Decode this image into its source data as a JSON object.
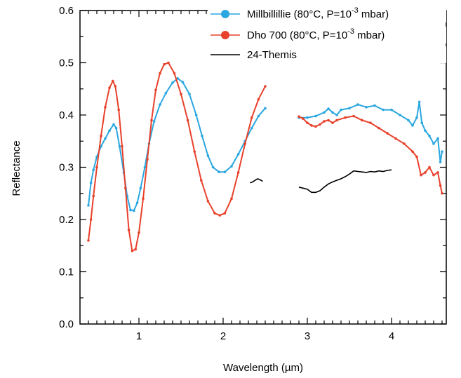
{
  "chart_data": {
    "type": "line",
    "xlabel": "Wavelength (µm)",
    "ylabel": "Reflectance",
    "xlim": [
      0.3,
      4.65
    ],
    "ylim": [
      0,
      0.6
    ],
    "xticks": [
      1,
      2,
      3,
      4
    ],
    "yticks": [
      0.0,
      0.1,
      0.2,
      0.3,
      0.4,
      0.5,
      0.6
    ],
    "ytick_labels": [
      "0.0",
      "0.1",
      "0.2",
      "0.3",
      "0.4",
      "0.5",
      "0.6"
    ],
    "grid": false,
    "legend_position": "top-right",
    "series": [
      {
        "name": "Millbillillie (80°C, P=10",
        "name_superscript": "-3",
        "name_suffix": " mbar)",
        "color": "#2aa7e0",
        "marker": "circle",
        "segments": [
          [
            [
              0.4,
              0.227
            ],
            [
              0.43,
              0.27
            ],
            [
              0.46,
              0.295
            ],
            [
              0.5,
              0.32
            ],
            [
              0.55,
              0.34
            ],
            [
              0.6,
              0.355
            ],
            [
              0.65,
              0.37
            ],
            [
              0.7,
              0.382
            ],
            [
              0.73,
              0.375
            ],
            [
              0.77,
              0.34
            ],
            [
              0.82,
              0.29
            ],
            [
              0.86,
              0.245
            ],
            [
              0.9,
              0.218
            ],
            [
              0.94,
              0.217
            ],
            [
              0.98,
              0.232
            ],
            [
              1.02,
              0.26
            ],
            [
              1.07,
              0.3
            ],
            [
              1.12,
              0.345
            ],
            [
              1.18,
              0.388
            ],
            [
              1.25,
              0.42
            ],
            [
              1.32,
              0.442
            ],
            [
              1.4,
              0.462
            ],
            [
              1.46,
              0.47
            ],
            [
              1.52,
              0.463
            ],
            [
              1.6,
              0.44
            ],
            [
              1.68,
              0.4
            ],
            [
              1.75,
              0.36
            ],
            [
              1.82,
              0.322
            ],
            [
              1.88,
              0.3
            ],
            [
              1.95,
              0.291
            ],
            [
              2.02,
              0.291
            ],
            [
              2.1,
              0.302
            ],
            [
              2.18,
              0.325
            ],
            [
              2.26,
              0.35
            ],
            [
              2.34,
              0.375
            ],
            [
              2.42,
              0.398
            ],
            [
              2.5,
              0.413
            ]
          ],
          [
            [
              2.9,
              0.395
            ],
            [
              3.0,
              0.395
            ],
            [
              3.1,
              0.398
            ],
            [
              3.2,
              0.405
            ],
            [
              3.25,
              0.412
            ],
            [
              3.3,
              0.405
            ],
            [
              3.35,
              0.4
            ],
            [
              3.4,
              0.41
            ],
            [
              3.5,
              0.413
            ],
            [
              3.6,
              0.42
            ],
            [
              3.7,
              0.415
            ],
            [
              3.8,
              0.418
            ],
            [
              3.9,
              0.41
            ],
            [
              4.0,
              0.41
            ],
            [
              4.1,
              0.4
            ],
            [
              4.2,
              0.39
            ],
            [
              4.25,
              0.38
            ],
            [
              4.3,
              0.395
            ],
            [
              4.33,
              0.425
            ],
            [
              4.36,
              0.385
            ],
            [
              4.4,
              0.37
            ],
            [
              4.45,
              0.36
            ],
            [
              4.5,
              0.345
            ],
            [
              4.55,
              0.355
            ],
            [
              4.58,
              0.31
            ],
            [
              4.6,
              0.33
            ]
          ]
        ]
      },
      {
        "name": "Dho 700  (80°C, P=10",
        "name_superscript": "-3",
        "name_suffix": " mbar)",
        "color": "#e8412c",
        "marker": "circle",
        "segments": [
          [
            [
              0.4,
              0.16
            ],
            [
              0.43,
              0.2
            ],
            [
              0.46,
              0.245
            ],
            [
              0.5,
              0.3
            ],
            [
              0.55,
              0.36
            ],
            [
              0.6,
              0.415
            ],
            [
              0.65,
              0.452
            ],
            [
              0.69,
              0.465
            ],
            [
              0.72,
              0.455
            ],
            [
              0.76,
              0.41
            ],
            [
              0.8,
              0.34
            ],
            [
              0.84,
              0.26
            ],
            [
              0.88,
              0.18
            ],
            [
              0.92,
              0.14
            ],
            [
              0.96,
              0.143
            ],
            [
              1.0,
              0.175
            ],
            [
              1.05,
              0.24
            ],
            [
              1.1,
              0.315
            ],
            [
              1.15,
              0.39
            ],
            [
              1.2,
              0.448
            ],
            [
              1.25,
              0.48
            ],
            [
              1.3,
              0.497
            ],
            [
              1.35,
              0.5
            ],
            [
              1.42,
              0.48
            ],
            [
              1.5,
              0.44
            ],
            [
              1.58,
              0.39
            ],
            [
              1.66,
              0.33
            ],
            [
              1.74,
              0.275
            ],
            [
              1.82,
              0.235
            ],
            [
              1.9,
              0.212
            ],
            [
              1.96,
              0.208
            ],
            [
              2.02,
              0.212
            ],
            [
              2.1,
              0.24
            ],
            [
              2.18,
              0.29
            ],
            [
              2.26,
              0.345
            ],
            [
              2.34,
              0.395
            ],
            [
              2.42,
              0.43
            ],
            [
              2.5,
              0.455
            ]
          ],
          [
            [
              2.9,
              0.397
            ],
            [
              2.95,
              0.393
            ],
            [
              3.0,
              0.385
            ],
            [
              3.05,
              0.38
            ],
            [
              3.1,
              0.378
            ],
            [
              3.15,
              0.382
            ],
            [
              3.2,
              0.388
            ],
            [
              3.25,
              0.39
            ],
            [
              3.3,
              0.385
            ],
            [
              3.35,
              0.39
            ],
            [
              3.45,
              0.395
            ],
            [
              3.55,
              0.398
            ],
            [
              3.65,
              0.39
            ],
            [
              3.75,
              0.385
            ],
            [
              3.85,
              0.375
            ],
            [
              3.95,
              0.365
            ],
            [
              4.05,
              0.355
            ],
            [
              4.15,
              0.345
            ],
            [
              4.25,
              0.33
            ],
            [
              4.3,
              0.32
            ],
            [
              4.35,
              0.285
            ],
            [
              4.4,
              0.29
            ],
            [
              4.45,
              0.3
            ],
            [
              4.5,
              0.285
            ],
            [
              4.55,
              0.29
            ],
            [
              4.58,
              0.265
            ],
            [
              4.6,
              0.25
            ]
          ]
        ]
      },
      {
        "name": "24-Themis",
        "color": "#000000",
        "marker": "none",
        "segments": [
          [
            [
              2.32,
              0.27
            ],
            [
              2.35,
              0.272
            ],
            [
              2.38,
              0.275
            ],
            [
              2.41,
              0.278
            ],
            [
              2.44,
              0.276
            ],
            [
              2.47,
              0.273
            ]
          ],
          [
            [
              2.9,
              0.262
            ],
            [
              2.95,
              0.26
            ],
            [
              3.0,
              0.258
            ],
            [
              3.05,
              0.252
            ],
            [
              3.1,
              0.252
            ],
            [
              3.15,
              0.255
            ],
            [
              3.2,
              0.262
            ],
            [
              3.25,
              0.268
            ],
            [
              3.3,
              0.272
            ],
            [
              3.35,
              0.275
            ],
            [
              3.4,
              0.278
            ],
            [
              3.45,
              0.282
            ],
            [
              3.5,
              0.287
            ],
            [
              3.55,
              0.293
            ],
            [
              3.6,
              0.292
            ],
            [
              3.65,
              0.291
            ],
            [
              3.7,
              0.29
            ],
            [
              3.75,
              0.292
            ],
            [
              3.8,
              0.291
            ],
            [
              3.85,
              0.293
            ],
            [
              3.9,
              0.292
            ],
            [
              3.95,
              0.294
            ],
            [
              4.0,
              0.295
            ]
          ]
        ]
      }
    ]
  }
}
